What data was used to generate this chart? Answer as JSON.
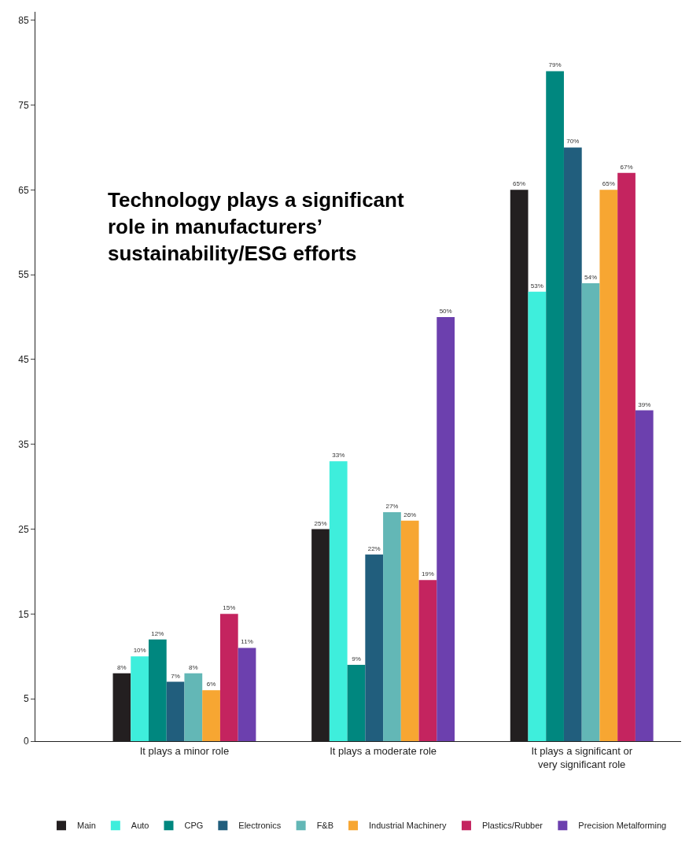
{
  "chart_data": {
    "type": "bar",
    "title": "Technology plays a significant role in manufacturers’ sustainability/ESG efforts",
    "categories": [
      "It plays a minor role",
      "It plays a moderate role",
      "It plays a significant or very significant role"
    ],
    "series": [
      {
        "name": "Main",
        "color": "#231f20",
        "values": [
          8,
          25,
          65
        ],
        "value_labels": [
          "8%",
          "25%",
          "65%"
        ]
      },
      {
        "name": "Auto",
        "color": "#3eeedc",
        "values": [
          10,
          33,
          53
        ],
        "value_labels": [
          "10%",
          "33%",
          "53%"
        ]
      },
      {
        "name": "CPG",
        "color": "#00877f",
        "values": [
          12,
          9,
          79
        ],
        "value_labels": [
          "12%",
          "9%",
          "79%"
        ]
      },
      {
        "name": "Electronics",
        "color": "#215e7d",
        "values": [
          7,
          22,
          70
        ],
        "value_labels": [
          "7%",
          "22%",
          "70%"
        ]
      },
      {
        "name": "F&B",
        "color": "#63b7b6",
        "values": [
          8,
          27,
          54
        ],
        "value_labels": [
          "8%",
          "27%",
          "54%"
        ]
      },
      {
        "name": "Industrial Machinery",
        "color": "#f7a632",
        "values": [
          6,
          26,
          65
        ],
        "value_labels": [
          "6%",
          "26%",
          "65%"
        ]
      },
      {
        "name": "Plastics/Rubber",
        "color": "#c4245f",
        "values": [
          15,
          19,
          67
        ],
        "value_labels": [
          "15%",
          "19%",
          "67%"
        ]
      },
      {
        "name": "Precision Metalforming",
        "color": "#6c40ae",
        "values": [
          11,
          50,
          39
        ],
        "value_labels": [
          "11%",
          "50%",
          "39%"
        ]
      }
    ],
    "ylim": [
      0,
      86
    ],
    "yticks": [
      0,
      5,
      15,
      25,
      35,
      45,
      55,
      65,
      75,
      85
    ],
    "legend": "bottom"
  }
}
